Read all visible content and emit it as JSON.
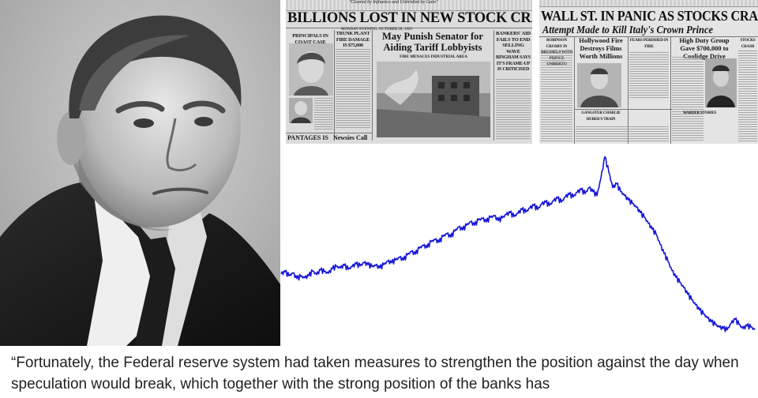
{
  "newspaper_left": {
    "headline": "BILLIONS LOST IN NEW STOCK CRASH",
    "top_line": "\"Cleared by Influence and Unbridled by Gain\"",
    "date_line": "MONDAY EVENING, OCTOBER 28, 1929",
    "columns": [
      "PRINCIPALS IN COAST CASE",
      "TRUNK PLANT FIRE DAMAGE IS $75,000",
      "BANKERS' AID FAILS TO END SELLING WAVE",
      "BINGHAM SAYS IT'S FRAME-UP IS CRITICISED"
    ],
    "story_head": "May Punish Senator for Aiding Tariff Lobbyists",
    "photo_caption": "FIRE MENACES INDUSTRIAL AREA",
    "bottom_heads": [
      "PANTAGES IS",
      "Newsies Call"
    ]
  },
  "newspaper_right": {
    "headline": "WALL ST. IN PANIC AS STOCKS CRASH",
    "subhead": "Attempt Made to Kill Italy's Crown Prince",
    "stories": [
      "Hollywood Fire Destroys Films Worth Millions",
      "High Duty Group Gave $700,000 to Coolidge Drive"
    ],
    "small_heads": [
      "ROBINSON CROSBY IN BRUSSELS WITH PRINCE UMBERTO",
      "FEARS PERISHED IN FIRE",
      "STOCKS CRASH",
      "GANGSTER CHARLIE HUBER'S TRAIN",
      "WARDER STORIES"
    ]
  },
  "chart_data": {
    "type": "line",
    "title": "",
    "xlabel": "",
    "ylabel": "",
    "color": "#1414d6",
    "x": [
      0,
      1,
      2,
      3,
      4,
      5,
      6,
      7,
      8,
      9,
      10,
      11,
      12,
      13,
      14,
      15,
      16,
      17,
      18,
      19,
      20,
      21,
      22,
      23,
      24,
      25,
      26,
      27,
      28,
      29,
      30,
      31,
      32,
      33,
      34,
      35,
      36,
      37,
      38,
      39,
      40,
      41,
      42,
      43,
      44,
      45,
      46,
      47,
      48,
      49,
      50,
      51,
      52,
      53,
      54,
      55,
      56,
      57,
      58,
      59,
      60,
      61,
      62,
      63,
      64,
      65,
      66,
      67,
      68,
      69,
      70,
      71,
      72,
      73,
      74,
      75,
      76,
      77,
      78,
      79,
      80,
      81,
      82,
      83,
      84,
      85,
      86,
      87,
      88,
      89,
      90,
      91,
      92,
      93,
      94,
      95,
      96,
      97,
      98,
      99,
      100,
      101,
      102,
      103,
      104,
      105,
      106,
      107,
      108,
      109,
      110,
      111,
      112,
      113,
      114,
      115,
      116,
      117,
      118,
      119,
      120
    ],
    "y": [
      107,
      110,
      104,
      108,
      100,
      103,
      101,
      104,
      111,
      106,
      113,
      110,
      108,
      115,
      118,
      116,
      120,
      114,
      118,
      122,
      119,
      124,
      121,
      118,
      120,
      116,
      121,
      126,
      124,
      128,
      132,
      128,
      136,
      141,
      137,
      146,
      150,
      147,
      156,
      159,
      155,
      164,
      168,
      163,
      172,
      178,
      174,
      181,
      186,
      181,
      189,
      191,
      186,
      193,
      195,
      188,
      192,
      197,
      200,
      194,
      199,
      205,
      201,
      207,
      211,
      205,
      213,
      216,
      211,
      218,
      222,
      216,
      224,
      228,
      224,
      231,
      235,
      229,
      238,
      232,
      226,
      252,
      285,
      262,
      238,
      244,
      232,
      226,
      219,
      214,
      208,
      200,
      193,
      184,
      175,
      167,
      152,
      138,
      126,
      112,
      102,
      94,
      86,
      76,
      68,
      60,
      52,
      46,
      40,
      34,
      30,
      26,
      24,
      22,
      32,
      38,
      30,
      24,
      28,
      26,
      22
    ]
  },
  "quote": {
    "text": "“Fortunately, the Federal reserve system had taken measures to strengthen the position against the day when speculation would break, which together with the strong position of the banks has"
  }
}
